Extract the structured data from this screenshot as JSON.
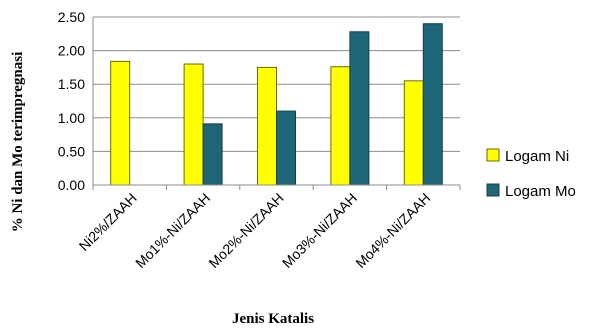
{
  "chart_data": {
    "type": "bar",
    "title": "",
    "xlabel": "Jenis Katalis",
    "ylabel": "% Ni dan Mo terimpregnasi",
    "ylim": [
      0,
      2.5
    ],
    "yticks": [
      "0.00",
      "0.50",
      "1.00",
      "1.50",
      "2.00",
      "2.50"
    ],
    "grid": true,
    "legend_position": "right",
    "categories": [
      "Ni2%/ZAAH",
      "Mo1%-Ni/ZAAH",
      "Mo2%-Ni/ZAAH",
      "Mo3%-Ni/ZAAH",
      "Mo4%-Ni/ZAAH"
    ],
    "series": [
      {
        "name": "Logam Ni",
        "color": "#FFFF00",
        "values": [
          1.84,
          1.8,
          1.75,
          1.76,
          1.55
        ]
      },
      {
        "name": "Logam Mo",
        "color": "#1F6678",
        "values": [
          null,
          0.91,
          1.1,
          2.28,
          2.4
        ]
      }
    ]
  }
}
